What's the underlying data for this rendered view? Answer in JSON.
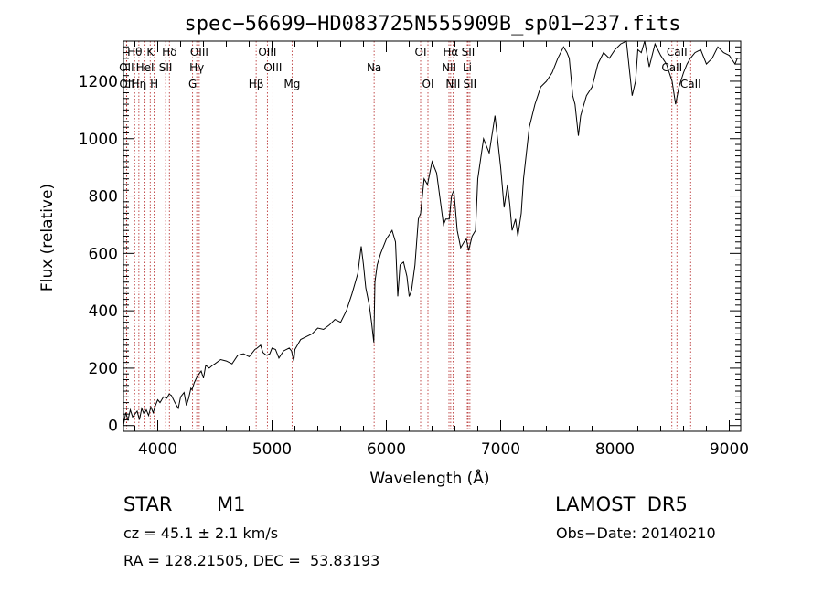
{
  "chart_data": {
    "type": "line",
    "title": "spec−56699−HD083725N555909B_sp01−237.fits",
    "xlabel": "Wavelength (Å)",
    "ylabel": "Flux (relative)",
    "xlim": [
      3700,
      9100
    ],
    "ylim": [
      -20,
      1340
    ],
    "x_ticks": [
      4000,
      5000,
      6000,
      7000,
      8000,
      9000
    ],
    "y_ticks": [
      0,
      200,
      400,
      600,
      800,
      1000,
      1200
    ],
    "grid": false,
    "legend": "none",
    "line_color": "#000000",
    "marker_color": "#b22222",
    "spectral_lines": [
      {
        "label": "Hθ",
        "wavelength": 3798,
        "row": 1
      },
      {
        "label": "OII",
        "wavelength": 3727,
        "row": 2
      },
      {
        "label": "OII",
        "wavelength": 3729,
        "row": 3
      },
      {
        "label": "Hη",
        "wavelength": 3835,
        "row": 3
      },
      {
        "label": "K",
        "wavelength": 3934,
        "row": 1
      },
      {
        "label": "HeI",
        "wavelength": 3889,
        "row": 2
      },
      {
        "label": "H",
        "wavelength": 3969,
        "row": 3
      },
      {
        "label": "Hδ",
        "wavelength": 4102,
        "row": 1
      },
      {
        "label": "SII",
        "wavelength": 4069,
        "row": 2
      },
      {
        "label": "OIII",
        "wavelength": 4363,
        "row": 1
      },
      {
        "label": "Hγ",
        "wavelength": 4341,
        "row": 2
      },
      {
        "label": "G",
        "wavelength": 4305,
        "row": 3
      },
      {
        "label": "OIII",
        "wavelength": 4959,
        "row": 1
      },
      {
        "label": "OIII",
        "wavelength": 5007,
        "row": 2
      },
      {
        "label": "Hβ",
        "wavelength": 4861,
        "row": 3
      },
      {
        "label": "Mg",
        "wavelength": 5175,
        "row": 3
      },
      {
        "label": "Na",
        "wavelength": 5893,
        "row": 2
      },
      {
        "label": "OI",
        "wavelength": 6300,
        "row": 1
      },
      {
        "label": "OI",
        "wavelength": 6364,
        "row": 3
      },
      {
        "label": "Hα",
        "wavelength": 6563,
        "row": 1
      },
      {
        "label": "NII",
        "wavelength": 6548,
        "row": 2
      },
      {
        "label": "NII",
        "wavelength": 6583,
        "row": 3
      },
      {
        "label": "SII",
        "wavelength": 6716,
        "row": 1
      },
      {
        "label": "Li",
        "wavelength": 6708,
        "row": 2
      },
      {
        "label": "SII",
        "wavelength": 6731,
        "row": 3
      },
      {
        "label": "CaII",
        "wavelength": 8542,
        "row": 1
      },
      {
        "label": "CaII",
        "wavelength": 8498,
        "row": 2
      },
      {
        "label": "CaII",
        "wavelength": 8662,
        "row": 3
      }
    ],
    "series": [
      {
        "x": [
          3700,
          3720,
          3740,
          3760,
          3780,
          3800,
          3820,
          3840,
          3860,
          3880,
          3900,
          3920,
          3940,
          3960,
          3980,
          4000,
          4020,
          4050,
          4080,
          4100,
          4120,
          4150,
          4180,
          4200,
          4230,
          4250,
          4270,
          4290,
          4300,
          4320,
          4350,
          4380,
          4400,
          4420,
          4450,
          4480,
          4500,
          4550,
          4600,
          4650,
          4700,
          4750,
          4800,
          4850,
          4870,
          4900,
          4920,
          4950,
          4980,
          5000,
          5030,
          5060,
          5100,
          5150,
          5170,
          5190,
          5200,
          5250,
          5300,
          5350,
          5400,
          5450,
          5500,
          5550,
          5600,
          5650,
          5700,
          5750,
          5780,
          5800,
          5820,
          5850,
          5870,
          5890,
          5900,
          5920,
          5950,
          6000,
          6050,
          6080,
          6100,
          6120,
          6150,
          6180,
          6200,
          6220,
          6250,
          6280,
          6300,
          6330,
          6360,
          6400,
          6440,
          6480,
          6500,
          6520,
          6550,
          6570,
          6590,
          6620,
          6650,
          6680,
          6700,
          6720,
          6750,
          6780,
          6800,
          6850,
          6900,
          6950,
          7000,
          7030,
          7060,
          7080,
          7100,
          7130,
          7150,
          7180,
          7200,
          7250,
          7300,
          7350,
          7400,
          7450,
          7500,
          7550,
          7580,
          7600,
          7630,
          7650,
          7680,
          7700,
          7750,
          7800,
          7850,
          7900,
          7950,
          8000,
          8050,
          8100,
          8150,
          8180,
          8200,
          8230,
          8260,
          8300,
          8350,
          8400,
          8450,
          8500,
          8530,
          8560,
          8600,
          8630,
          8660,
          8700,
          8750,
          8800,
          8850,
          8900,
          8950,
          9000,
          9050,
          9070
        ],
        "y": [
          0,
          45,
          20,
          55,
          30,
          40,
          50,
          20,
          60,
          40,
          55,
          35,
          65,
          45,
          70,
          90,
          80,
          100,
          95,
          110,
          105,
          80,
          60,
          100,
          115,
          70,
          95,
          130,
          125,
          150,
          175,
          190,
          165,
          210,
          200,
          210,
          215,
          230,
          225,
          215,
          245,
          250,
          240,
          265,
          270,
          280,
          255,
          245,
          250,
          270,
          265,
          235,
          260,
          270,
          260,
          225,
          265,
          300,
          310,
          320,
          340,
          335,
          350,
          370,
          360,
          400,
          460,
          530,
          625,
          560,
          480,
          420,
          360,
          290,
          500,
          560,
          600,
          650,
          680,
          640,
          450,
          560,
          570,
          520,
          450,
          470,
          560,
          720,
          740,
          860,
          840,
          920,
          880,
          760,
          700,
          720,
          720,
          800,
          820,
          680,
          620,
          640,
          650,
          610,
          660,
          680,
          860,
          1000,
          950,
          1080,
          900,
          760,
          840,
          770,
          680,
          720,
          660,
          740,
          860,
          1040,
          1120,
          1180,
          1200,
          1230,
          1280,
          1320,
          1300,
          1280,
          1150,
          1120,
          1010,
          1080,
          1150,
          1180,
          1260,
          1300,
          1280,
          1310,
          1330,
          1340,
          1150,
          1200,
          1310,
          1300,
          1340,
          1250,
          1330,
          1290,
          1260,
          1200,
          1120,
          1180,
          1230,
          1260,
          1280,
          1300,
          1310,
          1260,
          1280,
          1320,
          1300,
          1290,
          1260,
          1280
        ]
      }
    ]
  },
  "info": {
    "object_class": "STAR",
    "subclass": "M1",
    "survey": "LAMOST  DR5",
    "cz": "cz = 45.1 ± 2.1 km/s",
    "obs_date": "Obs−Date: 20140210",
    "coords": "RA = 128.21505, DEC =  53.83193"
  }
}
